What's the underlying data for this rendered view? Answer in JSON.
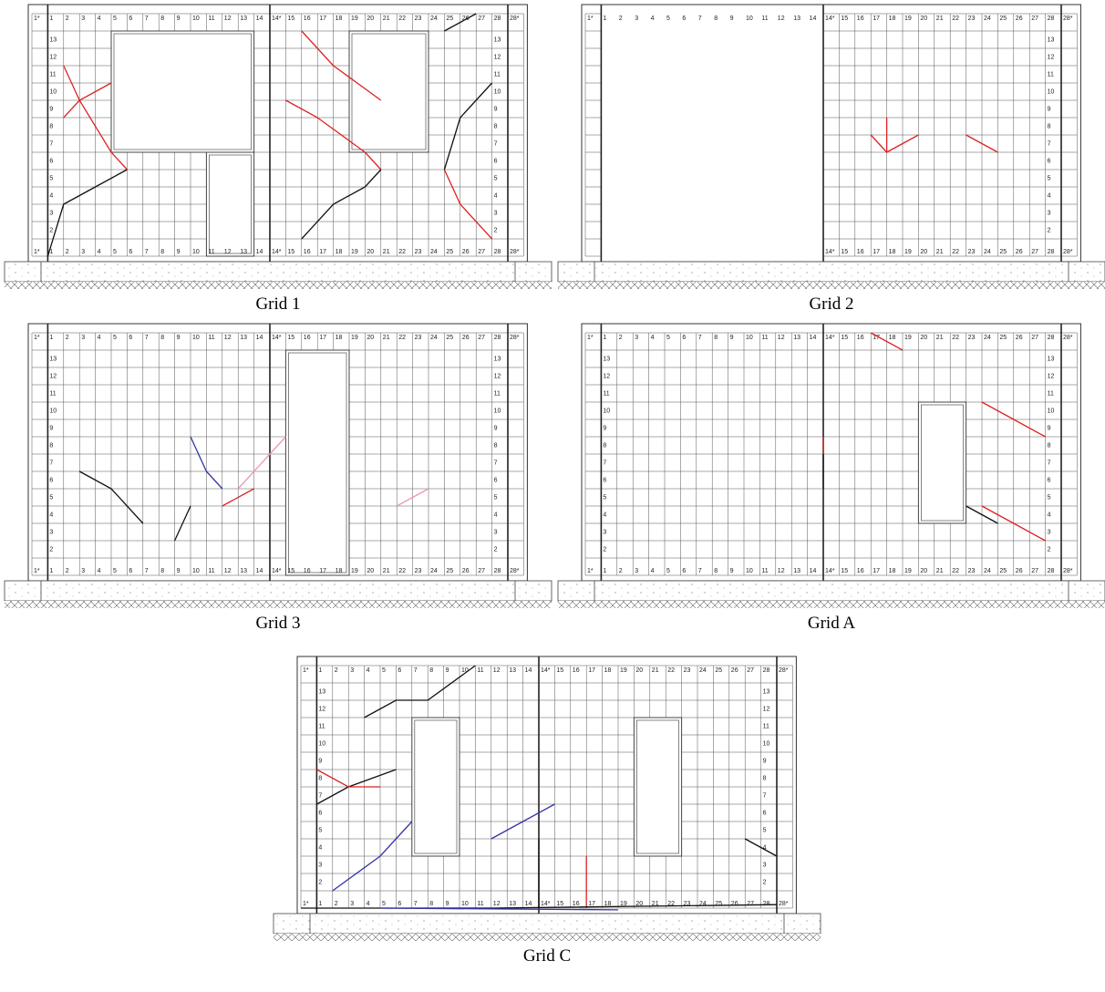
{
  "grid": {
    "column_labels": [
      "1*",
      "1",
      "2",
      "3",
      "4",
      "5",
      "6",
      "7",
      "8",
      "9",
      "10",
      "11",
      "12",
      "13",
      "14",
      "14*",
      "15",
      "16",
      "17",
      "18",
      "19",
      "20",
      "21",
      "22",
      "23",
      "24",
      "25",
      "26",
      "27",
      "28",
      "28*"
    ],
    "row_labels": [
      "13",
      "12",
      "11",
      "10",
      "9",
      "8",
      "7",
      "6",
      "5",
      "4",
      "3",
      "2"
    ]
  },
  "panels": [
    {
      "caption": "Grid 1"
    },
    {
      "caption": "Grid 2"
    },
    {
      "caption": "Grid 3"
    },
    {
      "caption": "Grid A"
    },
    {
      "caption": "Grid C"
    }
  ]
}
